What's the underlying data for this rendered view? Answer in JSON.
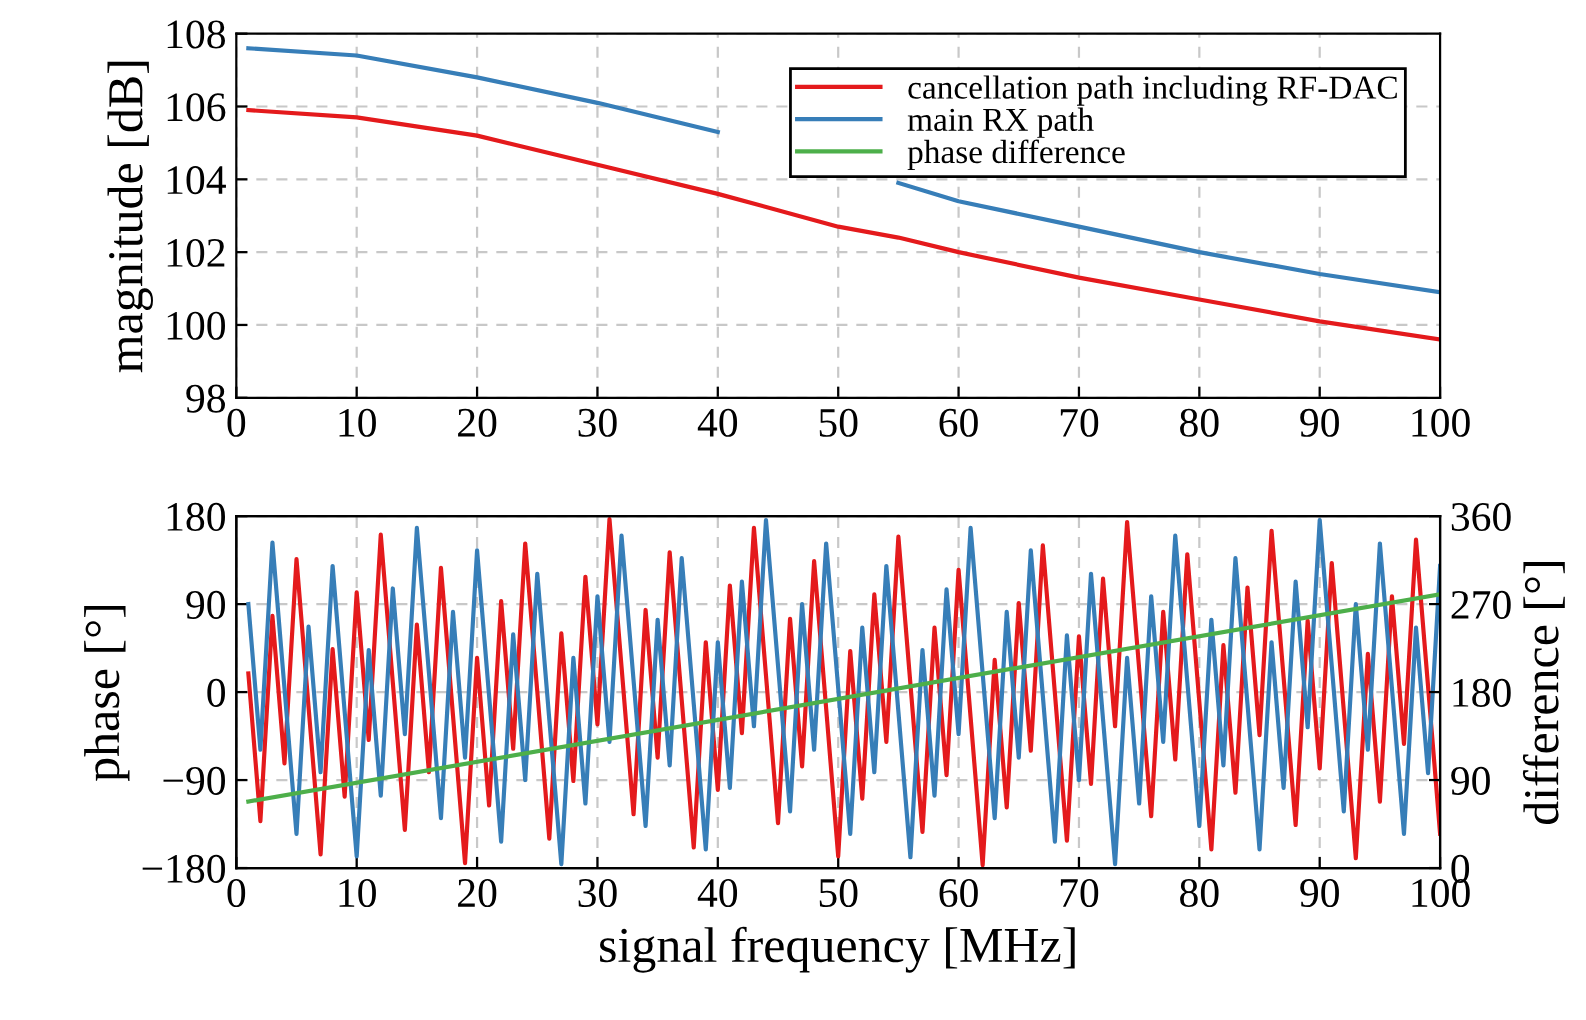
{
  "chart_data": [
    {
      "type": "line",
      "ylabel": "magnitude [dB]",
      "x": [
        1,
        10,
        20,
        30,
        40,
        50,
        55,
        60,
        70,
        80,
        90,
        100
      ],
      "series": [
        {
          "name": "cancellation path including RF-DAC",
          "color": "#e41a1c",
          "values": [
            105.9,
            105.7,
            105.2,
            104.4,
            103.6,
            102.7,
            102.4,
            102.0,
            101.3,
            100.7,
            100.1,
            99.6
          ]
        },
        {
          "name": "main RX path",
          "color": "#377eb8",
          "values": [
            107.6,
            107.4,
            106.8,
            106.1,
            105.3,
            null,
            103.9,
            103.4,
            102.7,
            102.0,
            101.4,
            100.9
          ]
        }
      ],
      "xlim": [
        0,
        100
      ],
      "xticks": [
        0,
        10,
        20,
        30,
        40,
        50,
        60,
        70,
        80,
        90,
        100
      ],
      "ylim": [
        98,
        108
      ],
      "yticks": [
        98,
        100,
        102,
        104,
        106,
        108
      ],
      "grid": true,
      "legend": "top right"
    },
    {
      "type": "line",
      "xlabel": "signal frequency [MHz]",
      "ylabel": "phase [°]",
      "y2label": "difference [°]",
      "x": [
        1,
        2,
        3,
        4,
        5,
        6,
        7,
        8,
        9,
        10,
        11,
        12,
        13,
        14,
        15,
        16,
        17,
        18,
        19,
        20,
        21,
        22,
        23,
        24,
        25,
        26,
        27,
        28,
        29,
        30,
        31,
        32,
        33,
        34,
        35,
        36,
        37,
        38,
        39,
        40,
        41,
        42,
        43,
        44,
        45,
        46,
        47,
        48,
        49,
        50,
        51,
        52,
        53,
        54,
        55,
        56,
        57,
        58,
        59,
        60,
        61,
        62,
        63,
        64,
        65,
        66,
        67,
        68,
        69,
        70,
        71,
        72,
        73,
        74,
        75,
        76,
        77,
        78,
        79,
        80,
        81,
        82,
        83,
        84,
        85,
        86,
        87,
        88,
        89,
        90,
        91,
        92,
        93,
        94,
        95,
        96,
        97,
        98,
        99,
        100
      ],
      "series": [
        {
          "color": "#e41a1c",
          "values": [
            19,
            -132,
            78,
            -73,
            136,
            -15,
            -166,
            44,
            -107,
            102,
            -49,
            161,
            10,
            -141,
            69,
            -82,
            127,
            -24,
            -175,
            35,
            -116,
            93,
            -58,
            152,
            1,
            -150,
            60,
            -91,
            118,
            -33,
            177,
            26,
            -125,
            84,
            -67,
            143,
            -8,
            -159,
            51,
            -100,
            109,
            -42,
            168,
            17,
            -134,
            75,
            -76,
            134,
            -17,
            -168,
            42,
            -109,
            100,
            -51,
            159,
            8,
            -143,
            66,
            -85,
            125,
            -26,
            -177,
            33,
            -118,
            91,
            -60,
            150,
            -1,
            -152,
            57,
            -94,
            116,
            -35,
            174,
            24,
            -127,
            82,
            -69,
            141,
            -10,
            -161,
            48,
            -103,
            107,
            -44,
            165,
            15,
            -136,
            73,
            -78,
            132,
            -19,
            -170,
            39,
            -112,
            98,
            -53,
            156,
            6,
            -145
          ]
        },
        {
          "color": "#377eb8",
          "values": [
            90,
            -59,
            153,
            4,
            -145,
            67,
            -82,
            129,
            -20,
            -168,
            43,
            -106,
            106,
            -43,
            168,
            20,
            -129,
            82,
            -67,
            145,
            -4,
            -153,
            59,
            -90,
            121,
            -28,
            -176,
            35,
            -114,
            98,
            -51,
            160,
            12,
            -137,
            74,
            -75,
            137,
            -12,
            -161,
            51,
            -98,
            113,
            -35,
            176,
            27,
            -122,
            90,
            -59,
            152,
            4,
            -145,
            66,
            -82,
            129,
            -20,
            -169,
            43,
            -106,
            105,
            -43,
            168,
            19,
            -129,
            82,
            -67,
            145,
            -4,
            -153,
            58,
            -90,
            121,
            -28,
            -176,
            35,
            -114,
            98,
            -51,
            160,
            11,
            -137,
            74,
            -75,
            137,
            -12,
            -161,
            51,
            -98,
            113,
            -36,
            176,
            27,
            -122,
            90,
            -59,
            152,
            4,
            -145,
            66,
            -83,
            129
          ]
        },
        {
          "name": "phase difference",
          "color": "#4daf4a",
          "axis": "y2",
          "x": [
            1,
            100
          ],
          "values": [
            68,
            280
          ]
        }
      ],
      "xlim": [
        0,
        100
      ],
      "xticks": [
        0,
        10,
        20,
        30,
        40,
        50,
        60,
        70,
        80,
        90,
        100
      ],
      "ylim": [
        -180,
        180
      ],
      "yticks": [
        {
          "value": -180,
          "label": "−180"
        },
        {
          "value": -90,
          "label": "−90"
        },
        0,
        90,
        180
      ],
      "y2lim": [
        0,
        360
      ],
      "y2ticks": [
        0,
        90,
        180,
        270,
        360
      ],
      "grid": true
    }
  ]
}
